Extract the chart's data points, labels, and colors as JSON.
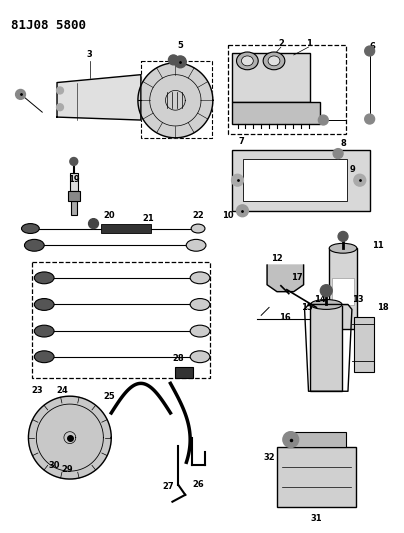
{
  "title": "81J08 5800",
  "bg_color": "#ffffff",
  "title_fontsize": 9,
  "title_fontweight": "bold",
  "figsize": [
    4.04,
    5.33
  ],
  "dpi": 100
}
